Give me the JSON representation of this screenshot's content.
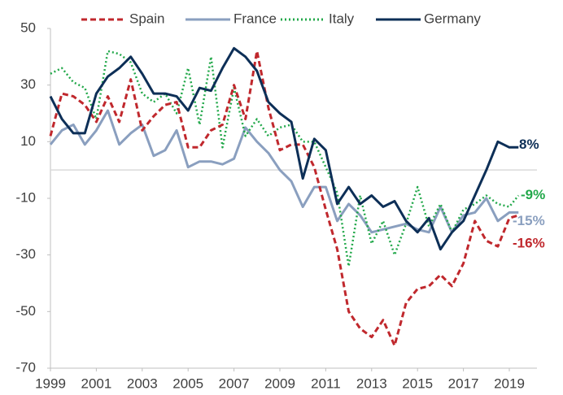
{
  "chart_data": {
    "type": "line",
    "x": [
      1999,
      1999.5,
      2000,
      2000.5,
      2001,
      2001.5,
      2002,
      2002.5,
      2003,
      2003.5,
      2004,
      2004.5,
      2005,
      2005.5,
      2006,
      2006.5,
      2007,
      2007.5,
      2008,
      2008.5,
      2009,
      2009.5,
      2010,
      2010.5,
      2011,
      2011.5,
      2012,
      2012.5,
      2013,
      2013.5,
      2014,
      2014.5,
      2015,
      2015.5,
      2016,
      2016.5,
      2017,
      2017.5,
      2018,
      2018.5,
      2019,
      2019.4
    ],
    "series": [
      {
        "name": "Spain",
        "color": "#c0282d",
        "dash": "dashed",
        "end_label": "-16%",
        "values": [
          12,
          27,
          26,
          23,
          17,
          26,
          17,
          32,
          14,
          19,
          23,
          24,
          8,
          8,
          14,
          16,
          30,
          18,
          42,
          22,
          7,
          9,
          9,
          1,
          -14,
          -28,
          -50,
          -56,
          -59,
          -53,
          -62,
          -47,
          -42,
          -41,
          -37,
          -41,
          -33,
          -18,
          -25,
          -27,
          -17,
          -16
        ]
      },
      {
        "name": "France",
        "color": "#8a9fbf",
        "dash": "solid",
        "end_label": "-15%",
        "values": [
          9,
          14,
          16,
          9,
          14,
          21,
          9,
          13,
          16,
          5,
          7,
          14,
          1,
          3,
          3,
          2,
          4,
          15,
          10,
          6,
          0,
          -4,
          -13,
          -6,
          -6,
          -18,
          -12,
          -16,
          -22,
          -21,
          -20,
          -19,
          -21,
          -22,
          -13,
          -22,
          -16,
          -15,
          -10,
          -18,
          -15,
          -15
        ]
      },
      {
        "name": "Italy",
        "color": "#22a84a",
        "dash": "dotted",
        "end_label": "-9%",
        "values": [
          34,
          36,
          31,
          29,
          18,
          42,
          41,
          38,
          27,
          24,
          27,
          20,
          36,
          16,
          40,
          8,
          29,
          12,
          18,
          12,
          15,
          16,
          10,
          10,
          1,
          -8,
          -34,
          -9,
          -26,
          -18,
          -30,
          -19,
          -6,
          -20,
          -12,
          -22,
          -14,
          -12,
          -9,
          -12,
          -13,
          -9
        ]
      },
      {
        "name": "Germany",
        "color": "#0d2f57",
        "dash": "solid",
        "end_label": "8%",
        "values": [
          26,
          18,
          13,
          13,
          27,
          33,
          36,
          40,
          34,
          27,
          27,
          26,
          21,
          29,
          28,
          36,
          43,
          40,
          35,
          24,
          20,
          17,
          -3,
          11,
          7,
          -12,
          -6,
          -12,
          -9,
          -13,
          -11,
          -18,
          -22,
          -17,
          -28,
          -22,
          -18,
          -9,
          0,
          10,
          8,
          8
        ]
      }
    ],
    "xlim": [
      1999,
      2019
    ],
    "xticks": [
      1999,
      2001,
      2003,
      2005,
      2007,
      2009,
      2011,
      2013,
      2015,
      2017,
      2019
    ],
    "ylim": [
      -70,
      50
    ],
    "yticks": [
      -70,
      -50,
      -30,
      -10,
      10,
      30,
      50
    ],
    "zero_line": true,
    "legend": "top"
  }
}
